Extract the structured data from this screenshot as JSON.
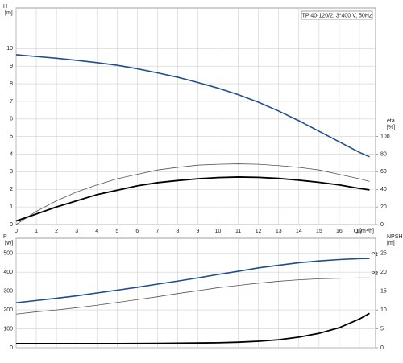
{
  "chart_data": [
    {
      "type": "line",
      "title": "TP 40-120/2, 3*400 V, 50Hz",
      "xlabel": "Q [m³/h]",
      "ylabel": [
        "H",
        "[m]"
      ],
      "y2label": [
        "eta",
        "[%]"
      ],
      "x": [
        0,
        1,
        2,
        3,
        4,
        5,
        6,
        7,
        8,
        9,
        10,
        11,
        12,
        13,
        14,
        15,
        16,
        17,
        17.5
      ],
      "xlim": [
        0,
        17.8
      ],
      "xticks": [
        0,
        1,
        2,
        3,
        4,
        5,
        6,
        7,
        8,
        9,
        10,
        11,
        12,
        13,
        14,
        15,
        16,
        17
      ],
      "xtick_labels": true,
      "ylim": [
        0,
        12.3
      ],
      "yticks": [
        0,
        1,
        2,
        3,
        4,
        5,
        6,
        7,
        8,
        9,
        10
      ],
      "y2lim": [
        0,
        246
      ],
      "y2ticks": [
        0,
        20,
        40,
        60,
        80,
        100
      ],
      "grid": true,
      "series": [
        {
          "color": "#1f4e8c",
          "width": 1.6,
          "values": [
            9.65,
            9.55,
            9.45,
            9.33,
            9.2,
            9.05,
            8.85,
            8.62,
            8.37,
            8.07,
            7.75,
            7.38,
            6.95,
            6.45,
            5.9,
            5.3,
            4.7,
            4.1,
            3.85
          ]
        },
        {
          "color": "#555555",
          "width": 0.8,
          "axis": "y2",
          "values": [
            0,
            15,
            27,
            37,
            45,
            52,
            57,
            62,
            65,
            67.5,
            68.5,
            69,
            68.5,
            67,
            65,
            62,
            57,
            52,
            49
          ]
        },
        {
          "color": "#000000",
          "width": 1.8,
          "axis": "y2",
          "values": [
            4,
            12,
            20,
            27,
            34,
            39,
            44,
            47.6,
            50,
            52,
            53.4,
            54,
            53.6,
            52.4,
            50.4,
            48,
            45,
            41,
            39.4
          ]
        }
      ]
    },
    {
      "type": "line",
      "ylabel": [
        "P",
        "[W]"
      ],
      "y2label": [
        "NPSH",
        "[m]"
      ],
      "x": [
        0,
        1,
        2,
        3,
        4,
        5,
        6,
        7,
        8,
        9,
        10,
        11,
        12,
        13,
        14,
        15,
        16,
        17,
        17.5
      ],
      "xlim": [
        0,
        17.8
      ],
      "xticks": [
        0,
        1,
        2,
        3,
        4,
        5,
        6,
        7,
        8,
        9,
        10,
        11,
        12,
        13,
        14,
        15,
        16,
        17
      ],
      "xtick_labels": false,
      "ylim": [
        0,
        580
      ],
      "yticks": [
        0,
        100,
        200,
        300,
        400,
        500
      ],
      "y2lim": [
        0,
        29
      ],
      "y2ticks": [
        0,
        5,
        10,
        15,
        20,
        25
      ],
      "grid": true,
      "series": [
        {
          "name": "P1",
          "color": "#1f4e8c",
          "width": 1.6,
          "values": [
            238,
            250,
            262,
            275,
            290,
            305,
            320,
            337,
            353,
            370,
            388,
            405,
            423,
            437,
            450,
            460,
            467,
            472,
            473
          ]
        },
        {
          "name": "P2",
          "color": "#555555",
          "width": 0.8,
          "values": [
            178,
            190,
            200,
            212,
            225,
            240,
            255,
            270,
            287,
            302,
            318,
            330,
            342,
            352,
            360,
            365,
            368,
            370,
            370
          ]
        },
        {
          "color": "#000000",
          "width": 1.8,
          "axis": "y2",
          "values": [
            1.1,
            1.1,
            1.1,
            1.1,
            1.1,
            1.1,
            1.12,
            1.15,
            1.2,
            1.25,
            1.3,
            1.45,
            1.7,
            2.1,
            2.8,
            3.8,
            5.3,
            7.6,
            9.1
          ]
        }
      ]
    }
  ]
}
